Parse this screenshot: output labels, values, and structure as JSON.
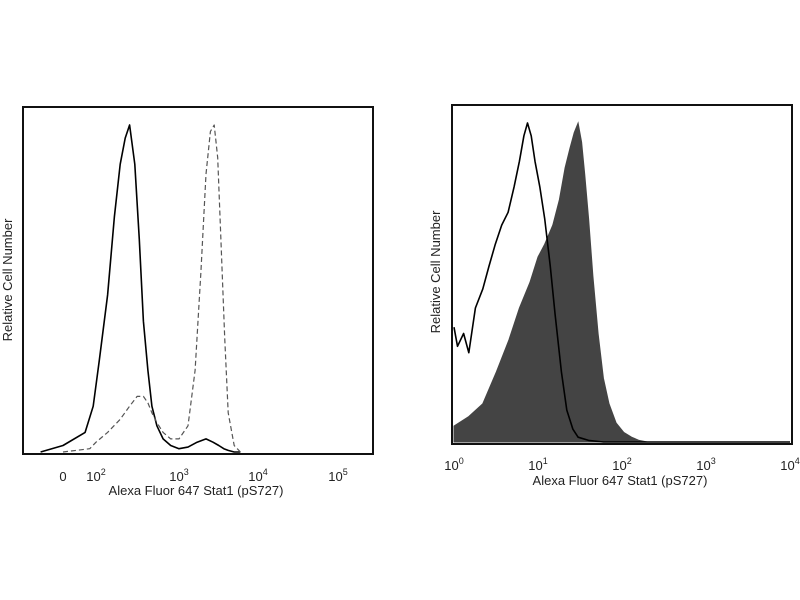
{
  "chart_data": [
    {
      "type": "area",
      "xlabel": "Alexa Fluor 647 Stat1 (pS727)",
      "ylabel": "Relative Cell Number",
      "x_scale": "biexponential",
      "xticks": [
        {
          "value": 0,
          "base": "0",
          "exp": ""
        },
        {
          "value": 100,
          "base": "10",
          "exp": "2"
        },
        {
          "value": 1000,
          "base": "10",
          "exp": "3"
        },
        {
          "value": 10000,
          "base": "10",
          "exp": "4"
        },
        {
          "value": 100000,
          "base": "10",
          "exp": "5"
        }
      ],
      "ylim": [
        0,
        100
      ],
      "series": [
        {
          "style": "solid",
          "color": "#000000",
          "x": [
            -60,
            0,
            40,
            80,
            110,
            140,
            170,
            200,
            230,
            260,
            300,
            340,
            380,
            430,
            480,
            550,
            650,
            800,
            1000,
            1300,
            1700,
            2200,
            2700,
            3200,
            3700,
            4200,
            5000,
            6000
          ],
          "y": [
            0,
            2,
            6,
            14,
            28,
            48,
            72,
            88,
            96,
            100,
            88,
            65,
            40,
            25,
            14,
            8,
            4,
            2,
            1,
            1.5,
            3,
            4,
            3,
            2,
            1,
            0.5,
            0,
            0
          ]
        },
        {
          "style": "dashed",
          "color": "#555555",
          "x": [
            0,
            60,
            100,
            140,
            200,
            260,
            320,
            380,
            430,
            480,
            550,
            650,
            800,
            1000,
            1300,
            1600,
            1900,
            2200,
            2500,
            2800,
            3100,
            3400,
            3800,
            4200,
            5000,
            6000
          ],
          "y": [
            0,
            1,
            3,
            6,
            10,
            14,
            17,
            17,
            15,
            12,
            9,
            6,
            4,
            4,
            8,
            25,
            55,
            85,
            98,
            100,
            90,
            65,
            35,
            12,
            2,
            0
          ]
        }
      ]
    },
    {
      "type": "area",
      "xlabel": "Alexa Fluor 647 Stat1 (pS727)",
      "ylabel": "Relative Cell Number",
      "x_scale": "log",
      "xlim": [
        1,
        10000
      ],
      "xticks": [
        {
          "value": 1,
          "base": "10",
          "exp": "0"
        },
        {
          "value": 10,
          "base": "10",
          "exp": "1"
        },
        {
          "value": 100,
          "base": "10",
          "exp": "2"
        },
        {
          "value": 1000,
          "base": "10",
          "exp": "3"
        },
        {
          "value": 10000,
          "base": "10",
          "exp": "4"
        }
      ],
      "ylim": [
        0,
        100
      ],
      "series": [
        {
          "style": "solid",
          "color": "#000000",
          "x": [
            1,
            1.1,
            1.3,
            1.5,
            1.8,
            2.2,
            2.6,
            3.1,
            3.7,
            4.4,
            5.2,
            6.0,
            6.8,
            7.5,
            8.3,
            9.2,
            10.5,
            12,
            14,
            16,
            19,
            22,
            26,
            30,
            40,
            60,
            100,
            10000
          ],
          "y": [
            36,
            30,
            34,
            28,
            42,
            48,
            55,
            62,
            68,
            72,
            80,
            88,
            96,
            100,
            96,
            88,
            80,
            70,
            55,
            40,
            22,
            10,
            4,
            1.5,
            0.5,
            0,
            0,
            0
          ]
        },
        {
          "style": "filled",
          "color": "#444444",
          "x": [
            1,
            1.5,
            2.2,
            3.2,
            4.5,
            6.0,
            8.0,
            10,
            12,
            15,
            18,
            21,
            24,
            27,
            30,
            33,
            36,
            40,
            45,
            52,
            60,
            70,
            85,
            105,
            130,
            160,
            200,
            300,
            10000
          ],
          "y": [
            5,
            8,
            12,
            22,
            32,
            42,
            50,
            58,
            62,
            68,
            76,
            86,
            92,
            97,
            100,
            94,
            84,
            70,
            52,
            34,
            20,
            12,
            6,
            3,
            1.5,
            0.5,
            0,
            0,
            0
          ]
        }
      ]
    }
  ]
}
